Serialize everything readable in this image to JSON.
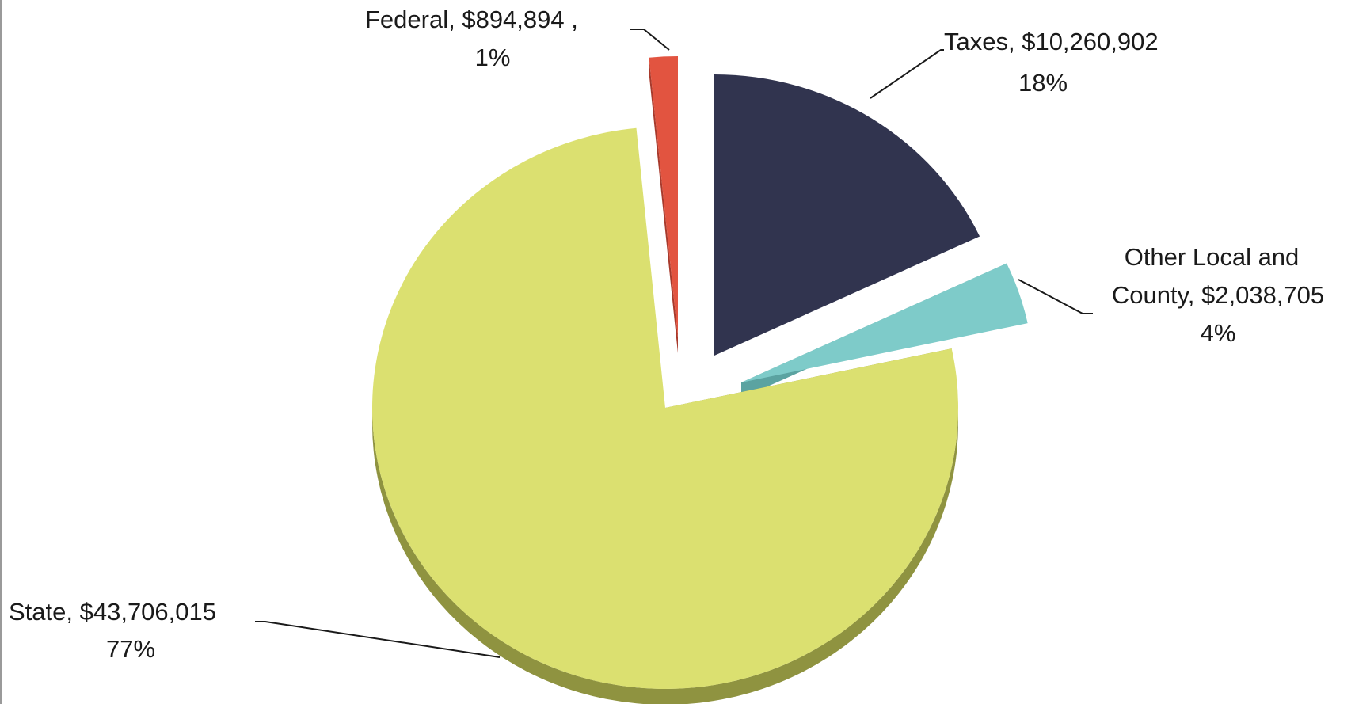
{
  "chart_data": {
    "type": "pie",
    "style": "3d-exploded",
    "title": "",
    "slices": [
      {
        "name": "Taxes",
        "value": 10260902,
        "value_label": "$10,260,902",
        "percent_label": "18%",
        "color": "#31344f",
        "side_color": "#222437"
      },
      {
        "name": "Other Local and County",
        "name_line1": "Other Local and",
        "name_line2": "County,",
        "value": 2038705,
        "value_label": "$2,038,705",
        "percent_label": "4%",
        "color": "#7ecbc9",
        "side_color": "#5ba3a1"
      },
      {
        "name": "State",
        "value": 43706015,
        "value_label": "$43,706,015",
        "percent_label": "77%",
        "color": "#dbe070",
        "side_color": "#8f9340"
      },
      {
        "name": "Federal",
        "value": 894894,
        "value_label": "$894,894",
        "percent_label": "1%",
        "color": "#e25440",
        "side_color": "#a83a2c"
      }
    ],
    "labels": {
      "taxes": "Taxes,  $10,260,902",
      "taxes_pct": "18%",
      "other_line1": "Other Local and",
      "other_line2": "County,  $2,038,705",
      "other_pct": "4%",
      "state": "State,  $43,706,015",
      "state_pct": "77%",
      "federal": "Federal,  $894,894 ,",
      "federal_pct": "1%"
    }
  }
}
